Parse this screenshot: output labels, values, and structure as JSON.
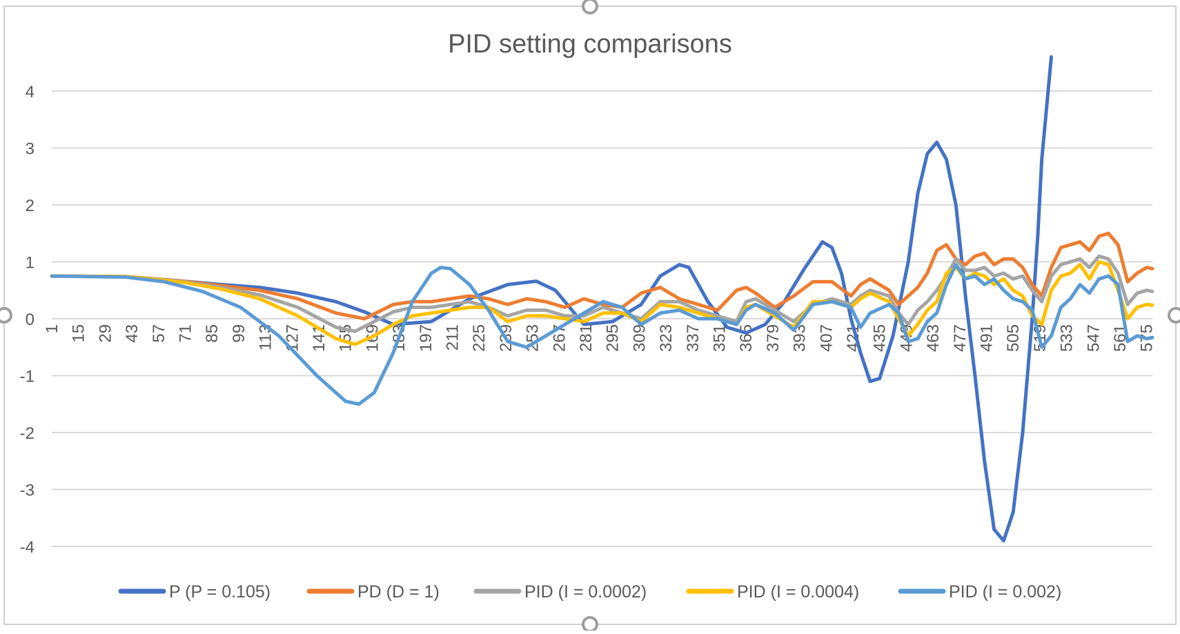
{
  "chart_data": {
    "type": "line",
    "title": "PID setting comparisons",
    "xlabel": "",
    "ylabel": "",
    "ylim": [
      -4,
      4
    ],
    "yticks": [
      -4,
      -3,
      -2,
      -1,
      0,
      1,
      2,
      3,
      4
    ],
    "xlim": [
      1,
      578
    ],
    "xtick_labels": [
      "1",
      "15",
      "29",
      "43",
      "57",
      "71",
      "85",
      "99",
      "113",
      "127",
      "141",
      "155",
      "169",
      "183",
      "197",
      "211",
      "225",
      "239",
      "253",
      "267",
      "281",
      "295",
      "309",
      "323",
      "337",
      "351",
      "365",
      "379",
      "393",
      "407",
      "421",
      "435",
      "449",
      "463",
      "477",
      "491",
      "505",
      "519",
      "533",
      "547",
      "561",
      "575"
    ],
    "grid": "horizontal",
    "legend_position": "bottom",
    "colors": {
      "p": "#4472C4",
      "pd": "#ED7D31",
      "pid_0002": "#A5A5A5",
      "pid_0004": "#FFC000",
      "pid_002": "#5B9BD5",
      "gridline": "#D9D9D9",
      "text": "#595959"
    },
    "series": [
      {
        "name": "P (P = 0.105)",
        "color": "#4472C4",
        "x": [
          1,
          40,
          70,
          90,
          110,
          130,
          150,
          165,
          180,
          200,
          220,
          240,
          255,
          265,
          280,
          295,
          310,
          320,
          330,
          335,
          345,
          355,
          365,
          375,
          385,
          395,
          405,
          410,
          415,
          420,
          425,
          430,
          435,
          442,
          450,
          455,
          460,
          465,
          470,
          475,
          480,
          485,
          490,
          495,
          500,
          505,
          510,
          515,
          518,
          520,
          525
        ],
        "y": [
          0.75,
          0.74,
          0.66,
          0.6,
          0.55,
          0.45,
          0.3,
          0.12,
          -0.1,
          -0.05,
          0.35,
          0.6,
          0.66,
          0.5,
          -0.1,
          -0.05,
          0.25,
          0.75,
          0.95,
          0.9,
          0.3,
          -0.15,
          -0.25,
          -0.1,
          0.3,
          0.85,
          1.35,
          1.25,
          0.8,
          0,
          -0.6,
          -1.1,
          -1.05,
          -0.3,
          1.0,
          2.2,
          2.9,
          3.1,
          2.8,
          2.0,
          0.4,
          -1.0,
          -2.5,
          -3.7,
          -3.9,
          -3.4,
          -2.0,
          0,
          1.5,
          2.8,
          4.6
        ]
      },
      {
        "name": "PD (D = 1)",
        "color": "#ED7D31",
        "x": [
          1,
          40,
          70,
          90,
          110,
          130,
          150,
          165,
          180,
          190,
          200,
          210,
          220,
          230,
          240,
          250,
          260,
          270,
          280,
          290,
          300,
          310,
          320,
          330,
          340,
          350,
          360,
          365,
          370,
          380,
          390,
          400,
          410,
          420,
          425,
          430,
          440,
          445,
          450,
          455,
          460,
          465,
          470,
          475,
          480,
          485,
          490,
          495,
          500,
          505,
          510,
          515,
          520,
          525,
          530,
          535,
          540,
          545,
          550,
          555,
          560,
          565,
          570,
          575,
          578
        ],
        "y": [
          0.75,
          0.74,
          0.66,
          0.58,
          0.5,
          0.35,
          0.1,
          0.0,
          0.25,
          0.3,
          0.3,
          0.35,
          0.4,
          0.35,
          0.25,
          0.35,
          0.3,
          0.2,
          0.35,
          0.25,
          0.2,
          0.45,
          0.55,
          0.35,
          0.25,
          0.15,
          0.5,
          0.55,
          0.45,
          0.2,
          0.4,
          0.65,
          0.65,
          0.4,
          0.6,
          0.7,
          0.5,
          0.25,
          0.4,
          0.55,
          0.8,
          1.2,
          1.3,
          1.05,
          0.95,
          1.1,
          1.15,
          0.95,
          1.05,
          1.05,
          0.9,
          0.6,
          0.4,
          0.9,
          1.25,
          1.3,
          1.35,
          1.2,
          1.45,
          1.5,
          1.3,
          0.65,
          0.8,
          0.9,
          0.88
        ]
      },
      {
        "name": "PID (I = 0.0002)",
        "color": "#A5A5A5",
        "x": [
          1,
          40,
          70,
          90,
          110,
          130,
          150,
          160,
          170,
          180,
          190,
          200,
          210,
          220,
          230,
          240,
          250,
          260,
          270,
          280,
          290,
          300,
          310,
          320,
          330,
          340,
          350,
          360,
          365,
          370,
          380,
          390,
          400,
          410,
          420,
          425,
          430,
          440,
          445,
          450,
          455,
          460,
          465,
          470,
          475,
          480,
          485,
          490,
          495,
          500,
          505,
          510,
          515,
          520,
          525,
          530,
          535,
          540,
          545,
          550,
          555,
          560,
          565,
          570,
          575,
          578
        ],
        "y": [
          0.75,
          0.74,
          0.65,
          0.55,
          0.42,
          0.2,
          -0.15,
          -0.22,
          -0.05,
          0.12,
          0.2,
          0.2,
          0.25,
          0.3,
          0.2,
          0.05,
          0.15,
          0.15,
          0.05,
          0.05,
          0.2,
          0.1,
          0.0,
          0.3,
          0.3,
          0.15,
          0.05,
          -0.05,
          0.3,
          0.35,
          0.15,
          -0.05,
          0.25,
          0.35,
          0.25,
          0.4,
          0.5,
          0.4,
          0.1,
          -0.1,
          0.15,
          0.3,
          0.5,
          0.75,
          1.05,
          0.85,
          0.85,
          0.9,
          0.75,
          0.8,
          0.7,
          0.75,
          0.5,
          0.3,
          0.75,
          0.95,
          1.0,
          1.05,
          0.9,
          1.1,
          1.05,
          0.8,
          0.25,
          0.45,
          0.5,
          0.48
        ]
      },
      {
        "name": "PID (I = 0.0004)",
        "color": "#FFC000",
        "x": [
          1,
          40,
          70,
          90,
          110,
          130,
          150,
          160,
          170,
          180,
          190,
          200,
          210,
          220,
          230,
          240,
          250,
          260,
          270,
          280,
          290,
          300,
          310,
          320,
          330,
          340,
          350,
          360,
          365,
          370,
          380,
          390,
          400,
          410,
          420,
          425,
          430,
          440,
          445,
          450,
          455,
          460,
          465,
          470,
          475,
          480,
          485,
          490,
          495,
          500,
          505,
          510,
          515,
          520,
          525,
          530,
          535,
          540,
          545,
          550,
          555,
          560,
          565,
          570,
          575,
          578
        ],
        "y": [
          0.75,
          0.74,
          0.64,
          0.52,
          0.35,
          0.05,
          -0.35,
          -0.45,
          -0.3,
          -0.1,
          0.05,
          0.1,
          0.15,
          0.2,
          0.2,
          -0.05,
          0.05,
          0.05,
          0.0,
          -0.05,
          0.1,
          0.1,
          -0.05,
          0.25,
          0.2,
          0.1,
          0.0,
          -0.1,
          0.2,
          0.25,
          0.05,
          -0.15,
          0.3,
          0.3,
          0.2,
          0.35,
          0.45,
          0.3,
          0.0,
          -0.3,
          -0.1,
          0.15,
          0.3,
          0.8,
          0.9,
          0.7,
          0.8,
          0.75,
          0.6,
          0.7,
          0.5,
          0.4,
          0.05,
          -0.1,
          0.5,
          0.75,
          0.8,
          0.95,
          0.7,
          1.0,
          0.95,
          0.5,
          0.0,
          0.2,
          0.25,
          0.24
        ]
      },
      {
        "name": "PID (I = 0.002)",
        "color": "#5B9BD5",
        "x": [
          1,
          40,
          60,
          80,
          100,
          120,
          140,
          155,
          162,
          170,
          180,
          190,
          200,
          205,
          210,
          220,
          230,
          240,
          250,
          260,
          270,
          280,
          290,
          300,
          310,
          320,
          330,
          340,
          350,
          360,
          365,
          370,
          380,
          390,
          400,
          410,
          420,
          425,
          430,
          440,
          445,
          450,
          455,
          460,
          465,
          470,
          475,
          480,
          485,
          490,
          495,
          500,
          505,
          510,
          515,
          520,
          525,
          530,
          535,
          540,
          545,
          550,
          555,
          560,
          565,
          570,
          575,
          578
        ],
        "y": [
          0.75,
          0.73,
          0.65,
          0.48,
          0.2,
          -0.3,
          -1.0,
          -1.45,
          -1.5,
          -1.3,
          -0.6,
          0.3,
          0.8,
          0.9,
          0.88,
          0.6,
          0.15,
          -0.4,
          -0.5,
          -0.3,
          -0.1,
          0.1,
          0.3,
          0.2,
          -0.1,
          0.1,
          0.15,
          0.0,
          0.0,
          -0.1,
          0.15,
          0.25,
          0.1,
          -0.2,
          0.25,
          0.3,
          0.2,
          -0.15,
          0.1,
          0.25,
          0.1,
          -0.4,
          -0.35,
          -0.05,
          0.1,
          0.6,
          0.95,
          0.7,
          0.75,
          0.6,
          0.7,
          0.5,
          0.35,
          0.3,
          0.15,
          -0.5,
          -0.3,
          0.2,
          0.35,
          0.6,
          0.45,
          0.7,
          0.75,
          0.6,
          -0.4,
          -0.3,
          -0.35,
          -0.33
        ]
      }
    ]
  }
}
